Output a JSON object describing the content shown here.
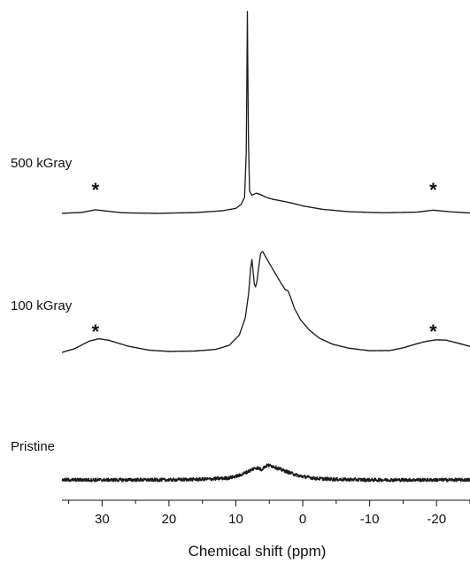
{
  "chart_data": {
    "type": "line",
    "xlabel": "Chemical shift (ppm)",
    "xlim": [
      36,
      -25
    ],
    "x_reversed": true,
    "xticks": [
      30,
      20,
      10,
      0,
      -10,
      -20
    ],
    "xtick_labels": [
      "30",
      "20",
      "10",
      "0",
      "-10",
      "-20"
    ],
    "y_axis_shown": false,
    "grid": false,
    "line_color": "#1a1a1a",
    "series": [
      {
        "name": "500 kGray",
        "sideband_marks": [
          {
            "x": 31,
            "label": "*"
          },
          {
            "x": -19.5,
            "label": "*"
          }
        ],
        "noise": 0.0006,
        "points": [
          [
            36,
            0.0
          ],
          [
            33,
            0.005
          ],
          [
            31,
            0.018
          ],
          [
            29.5,
            0.012
          ],
          [
            27,
            0.003
          ],
          [
            22,
            0.0
          ],
          [
            16,
            0.004
          ],
          [
            12,
            0.013
          ],
          [
            10,
            0.025
          ],
          [
            9.2,
            0.045
          ],
          [
            8.7,
            0.08
          ],
          [
            8.45,
            0.3
          ],
          [
            8.35,
            0.7
          ],
          [
            8.28,
            1.0
          ],
          [
            8.22,
            0.74
          ],
          [
            8.12,
            0.36
          ],
          [
            7.95,
            0.11
          ],
          [
            7.6,
            0.09
          ],
          [
            7.0,
            0.1
          ],
          [
            6.4,
            0.095
          ],
          [
            5.5,
            0.08
          ],
          [
            4.5,
            0.07
          ],
          [
            3.2,
            0.062
          ],
          [
            1.5,
            0.05
          ],
          [
            0,
            0.037
          ],
          [
            -3,
            0.02
          ],
          [
            -7,
            0.008
          ],
          [
            -12,
            0.003
          ],
          [
            -17,
            0.006
          ],
          [
            -19.5,
            0.016
          ],
          [
            -22,
            0.008
          ],
          [
            -25,
            0.002
          ]
        ]
      },
      {
        "name": "100 kGray",
        "sideband_marks": [
          {
            "x": 31,
            "label": "*"
          },
          {
            "x": -19.5,
            "label": "*"
          }
        ],
        "noise": 0.0015,
        "points": [
          [
            36,
            0.0
          ],
          [
            34,
            0.04
          ],
          [
            32,
            0.11
          ],
          [
            30.5,
            0.135
          ],
          [
            29,
            0.12
          ],
          [
            26,
            0.06
          ],
          [
            23,
            0.022
          ],
          [
            20,
            0.01
          ],
          [
            16,
            0.014
          ],
          [
            13,
            0.03
          ],
          [
            11,
            0.07
          ],
          [
            9.5,
            0.17
          ],
          [
            8.6,
            0.34
          ],
          [
            8.1,
            0.58
          ],
          [
            7.8,
            0.83
          ],
          [
            7.6,
            0.92
          ],
          [
            7.45,
            0.82
          ],
          [
            7.25,
            0.68
          ],
          [
            7.05,
            0.65
          ],
          [
            6.85,
            0.7
          ],
          [
            6.6,
            0.84
          ],
          [
            6.3,
            0.98
          ],
          [
            6.0,
            1.0
          ],
          [
            5.5,
            0.94
          ],
          [
            4.8,
            0.86
          ],
          [
            4.0,
            0.77
          ],
          [
            3.2,
            0.68
          ],
          [
            2.6,
            0.62
          ],
          [
            2.2,
            0.61
          ],
          [
            1.8,
            0.54
          ],
          [
            1.2,
            0.43
          ],
          [
            0.3,
            0.32
          ],
          [
            -1,
            0.22
          ],
          [
            -2.5,
            0.14
          ],
          [
            -4.5,
            0.08
          ],
          [
            -7,
            0.04
          ],
          [
            -10,
            0.017
          ],
          [
            -13,
            0.018
          ],
          [
            -15,
            0.045
          ],
          [
            -17,
            0.085
          ],
          [
            -18.5,
            0.11
          ],
          [
            -20,
            0.125
          ],
          [
            -21.5,
            0.12
          ],
          [
            -23,
            0.095
          ],
          [
            -25,
            0.06
          ]
        ]
      },
      {
        "name": "Pristine",
        "sideband_marks": [],
        "noise": 0.018,
        "points": [
          [
            36,
            0.0
          ],
          [
            20,
            0.0
          ],
          [
            14,
            0.008
          ],
          [
            11,
            0.02
          ],
          [
            9.5,
            0.045
          ],
          [
            8.5,
            0.075
          ],
          [
            7.5,
            0.11
          ],
          [
            7.0,
            0.125
          ],
          [
            6.6,
            0.12
          ],
          [
            6.2,
            0.105
          ],
          [
            5.6,
            0.14
          ],
          [
            5.2,
            0.15
          ],
          [
            4.8,
            0.145
          ],
          [
            4.4,
            0.14
          ],
          [
            3.8,
            0.12
          ],
          [
            3.0,
            0.1
          ],
          [
            2.0,
            0.075
          ],
          [
            0.5,
            0.04
          ],
          [
            -2,
            0.015
          ],
          [
            -5,
            0.005
          ],
          [
            -10,
            0.0
          ],
          [
            -25,
            0.0
          ]
        ]
      }
    ]
  }
}
